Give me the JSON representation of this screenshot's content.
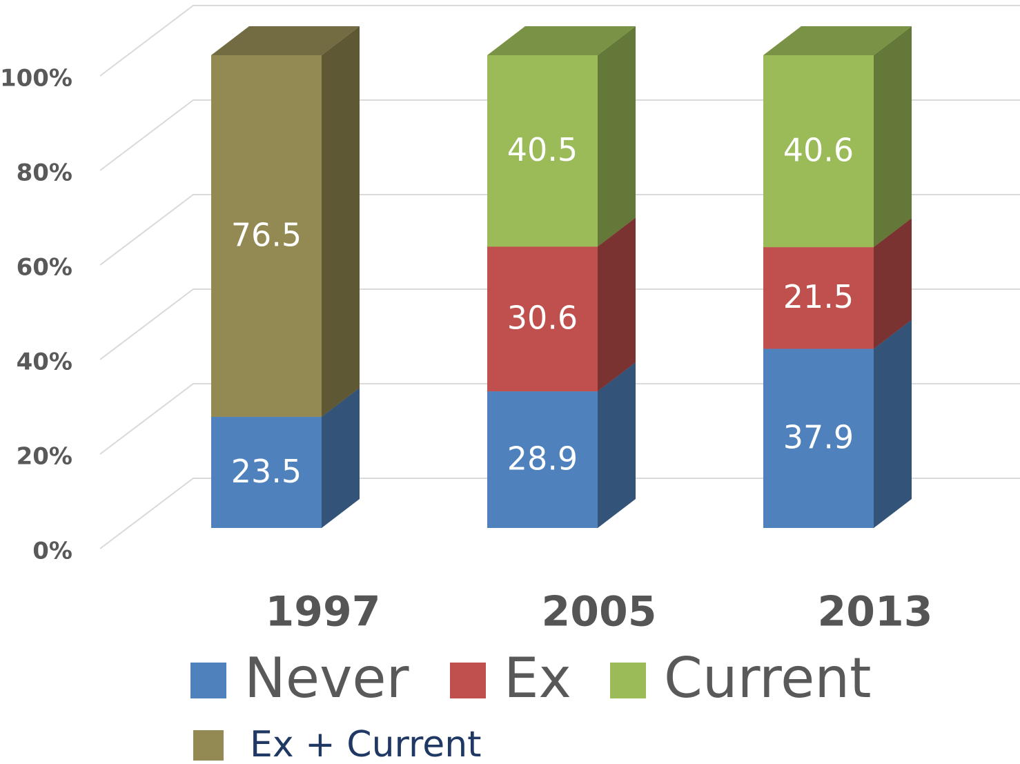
{
  "chart_data": {
    "type": "bar3d_stacked",
    "categories": [
      "1997",
      "2005",
      "2013"
    ],
    "series": [
      {
        "name": "Never",
        "color": "#4f81bd",
        "values": [
          23.5,
          28.9,
          37.9
        ]
      },
      {
        "name": "Ex",
        "color": "#c0504d",
        "values": [
          null,
          30.6,
          21.5
        ]
      },
      {
        "name": "Current",
        "color": "#9bbb59",
        "values": [
          null,
          40.5,
          40.6
        ]
      },
      {
        "name": "Ex + Current",
        "color": "#938953",
        "values": [
          76.5,
          null,
          null
        ]
      }
    ],
    "ylim": [
      0,
      100
    ],
    "yticks": [
      {
        "value": 0,
        "label": "0%"
      },
      {
        "value": 20,
        "label": "20%"
      },
      {
        "value": 40,
        "label": "40%"
      },
      {
        "value": 60,
        "label": "60%"
      },
      {
        "value": 80,
        "label": "80%"
      },
      {
        "value": 100,
        "label": "100%"
      }
    ],
    "grid": true
  }
}
